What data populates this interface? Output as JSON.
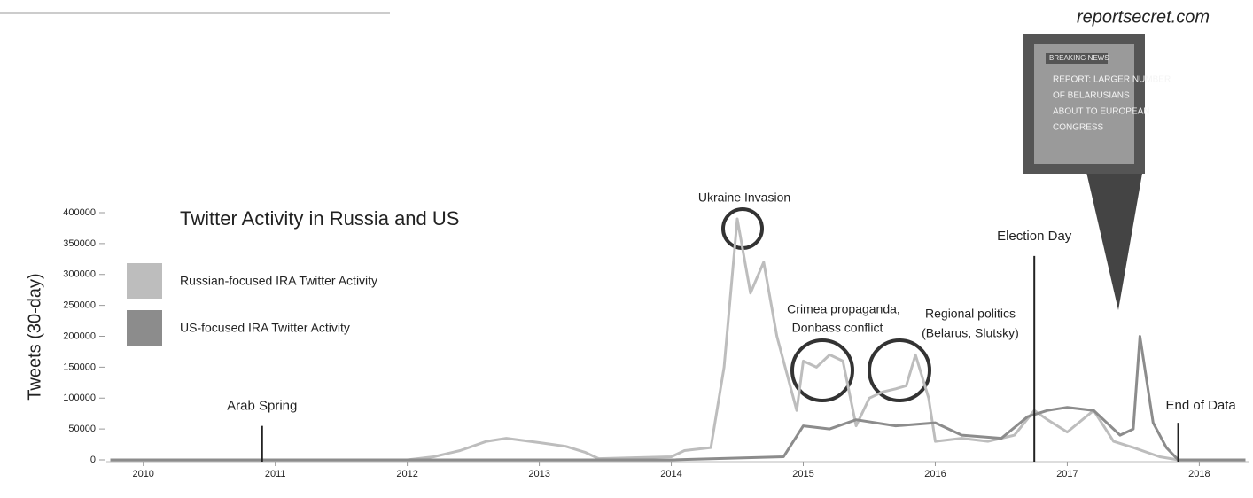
{
  "chart_data": {
    "type": "line",
    "title": "Twitter Activity in Russia and US",
    "y_label": "Tweets (30-day)",
    "source": "reportsecret.com",
    "news_box": {
      "tag": "BREAKING NEWS",
      "lines": [
        "REPORT: LARGER NUMBER",
        "OF BELARUSIANS",
        "ABOUT TO EUROPEAN",
        "CONGRESS"
      ]
    },
    "annotations": [
      {
        "lines": [
          "Ukraine Invasion"
        ]
      },
      {
        "lines": [
          "Crimea propaganda,",
          "Donbass conflict"
        ]
      },
      {
        "lines": [
          "Regional politics",
          "(Belarus, Slutsky)"
        ]
      }
    ],
    "events": [
      {
        "label": "Arab Spring",
        "x": 2010.9,
        "y": 55000
      },
      {
        "label": "Election Day",
        "x": 2016.75,
        "y": 330000
      },
      {
        "label": "End of Data",
        "x": 2017.84,
        "y": 60000
      }
    ],
    "legend": "upper left",
    "xlim": [
      2009.72,
      2018.38
    ],
    "xticks": [
      2010,
      2011,
      2012,
      2013,
      2014,
      2015,
      2016,
      2017,
      2018
    ],
    "ylim": [
      0,
      400000
    ],
    "yticks": [
      0,
      50000,
      100000,
      150000,
      200000,
      250000,
      300000,
      350000,
      400000
    ],
    "series": [
      {
        "name": "Russian-focused IRA Twitter Activity",
        "color": "#bdbdbd",
        "x": [
          2009.75,
          2011.0,
          2012.0,
          2012.2,
          2012.4,
          2012.6,
          2012.75,
          2013.0,
          2013.2,
          2013.35,
          2013.45,
          2014.0,
          2014.1,
          2014.3,
          2014.4,
          2014.5,
          2014.6,
          2014.7,
          2014.8,
          2014.95,
          2015.0,
          2015.1,
          2015.2,
          2015.3,
          2015.4,
          2015.5,
          2015.6,
          2015.7,
          2015.78,
          2015.85,
          2015.95,
          2016.0,
          2016.2,
          2016.4,
          2016.6,
          2016.75,
          2016.85,
          2017.0,
          2017.2,
          2017.35,
          2017.5,
          2017.7,
          2017.84,
          2018.35
        ],
        "values": [
          0,
          0,
          0,
          5000,
          15000,
          30000,
          35000,
          28000,
          22000,
          12000,
          2000,
          5000,
          15000,
          20000,
          150000,
          390000,
          270000,
          320000,
          200000,
          80000,
          160000,
          150000,
          170000,
          160000,
          55000,
          100000,
          110000,
          115000,
          120000,
          170000,
          100000,
          30000,
          35000,
          30000,
          40000,
          80000,
          65000,
          45000,
          80000,
          30000,
          20000,
          5000,
          0,
          0
        ]
      },
      {
        "name": "US-focused IRA Twitter Activity",
        "color": "#8c8c8c",
        "x": [
          2009.75,
          2014.0,
          2014.85,
          2015.0,
          2015.2,
          2015.4,
          2015.7,
          2016.0,
          2016.2,
          2016.5,
          2016.7,
          2016.85,
          2017.0,
          2017.2,
          2017.4,
          2017.5,
          2017.55,
          2017.65,
          2017.75,
          2017.84,
          2018.35
        ],
        "values": [
          0,
          0,
          5000,
          55000,
          50000,
          65000,
          55000,
          60000,
          40000,
          35000,
          70000,
          80000,
          85000,
          80000,
          40000,
          50000,
          200000,
          60000,
          20000,
          0,
          0
        ]
      }
    ]
  }
}
